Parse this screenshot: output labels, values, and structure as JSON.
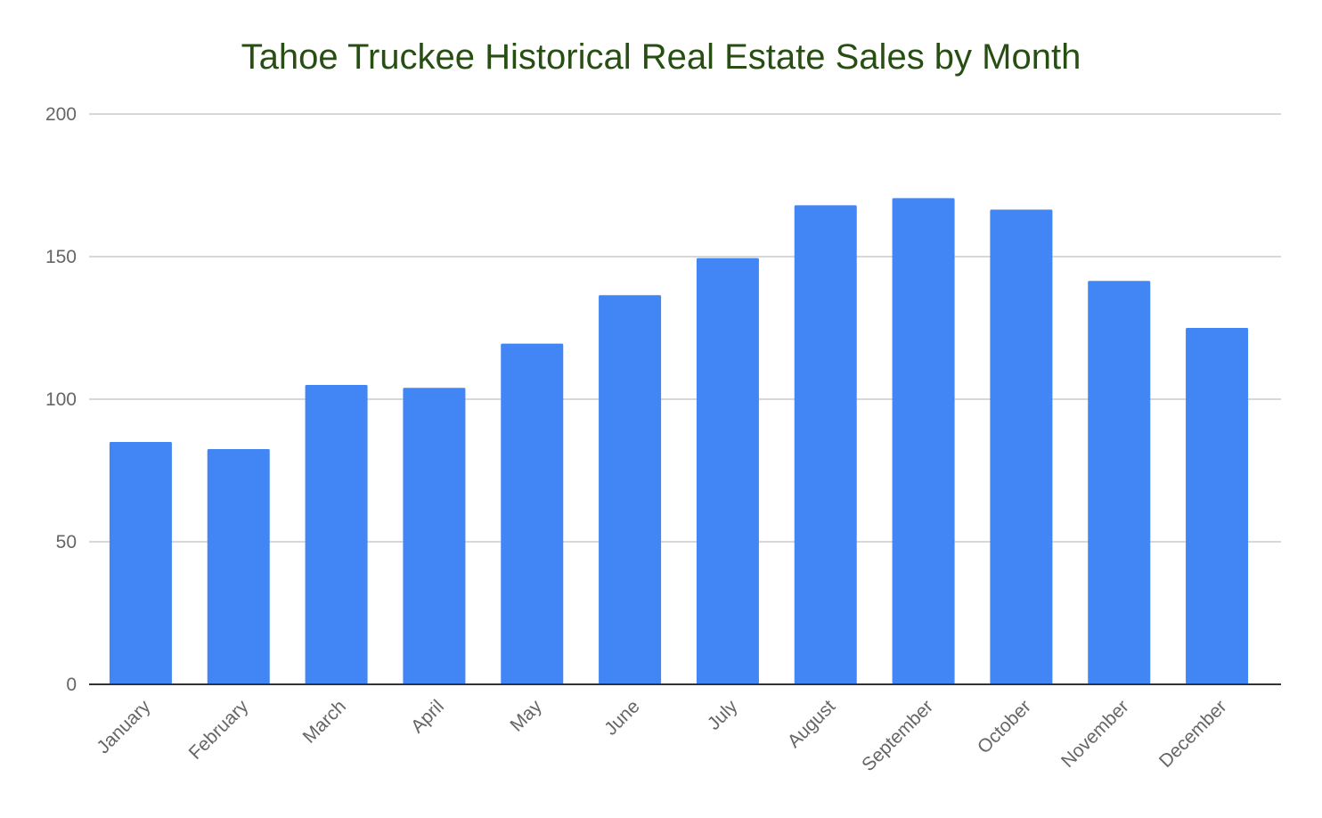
{
  "chart_data": {
    "type": "bar",
    "title": "Tahoe Truckee Historical Real Estate Sales by Month",
    "xlabel": "",
    "ylabel": "",
    "categories": [
      "January",
      "February",
      "March",
      "April",
      "May",
      "June",
      "July",
      "August",
      "September",
      "October",
      "November",
      "December"
    ],
    "values": [
      85,
      82.5,
      105,
      104,
      119.5,
      136.5,
      149.5,
      168,
      170.5,
      166.5,
      141.5,
      125
    ],
    "ylim": [
      0,
      200
    ],
    "yticks": [
      0,
      50,
      100,
      150,
      200
    ],
    "grid": true,
    "legend": "none",
    "bar_color": "#4285f4",
    "title_color": "#274e13",
    "grid_color": "#cccccc",
    "axis_color": "#333333",
    "label_color": "#666666"
  }
}
